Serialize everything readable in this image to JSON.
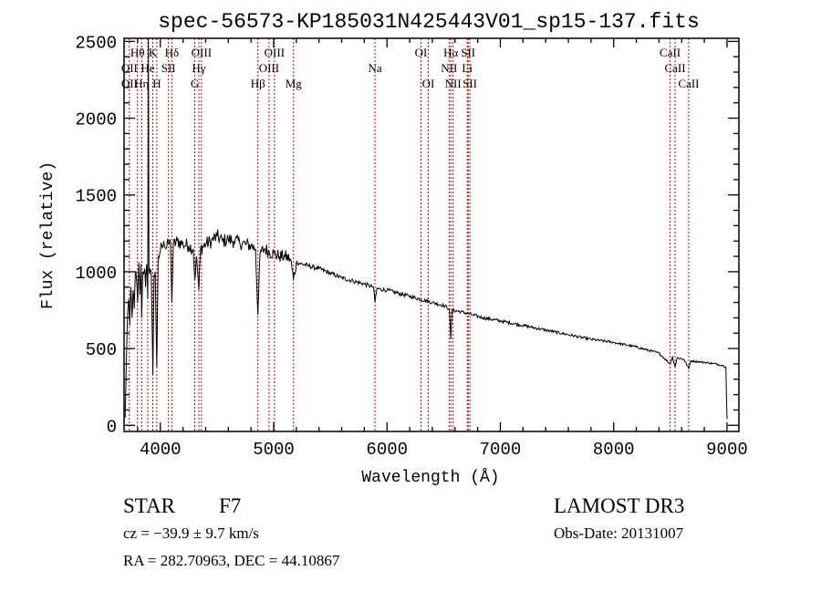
{
  "chart_data": {
    "type": "line",
    "title": "spec-56573-KP185031N425443V01_sp15-137.fits",
    "xlabel": "Wavelength (Å)",
    "ylabel": "Flux (relative)",
    "xlim": [
      3680,
      9105
    ],
    "ylim": [
      -40,
      2520
    ],
    "xticks": [
      4000,
      5000,
      6000,
      7000,
      8000,
      9000
    ],
    "yticks": [
      0,
      500,
      1000,
      1500,
      2000,
      2500
    ],
    "grid": false,
    "series": [
      {
        "name": "spectrum",
        "color": "#000000",
        "points": [
          [
            3690,
            50
          ],
          [
            3700,
            420
          ],
          [
            3710,
            700
          ],
          [
            3720,
            820
          ],
          [
            3730,
            650
          ],
          [
            3740,
            900
          ],
          [
            3750,
            700
          ],
          [
            3760,
            880
          ],
          [
            3770,
            760
          ],
          [
            3780,
            1000
          ],
          [
            3790,
            950
          ],
          [
            3800,
            800
          ],
          [
            3810,
            1060
          ],
          [
            3820,
            850
          ],
          [
            3830,
            1050
          ],
          [
            3835,
            700
          ],
          [
            3845,
            1000
          ],
          [
            3860,
            1020
          ],
          [
            3870,
            900
          ],
          [
            3880,
            1050
          ],
          [
            3889,
            820
          ],
          [
            3895,
            2520
          ],
          [
            3900,
            1010
          ],
          [
            3910,
            1020
          ],
          [
            3920,
            1000
          ],
          [
            3934,
            330
          ],
          [
            3945,
            980
          ],
          [
            3955,
            1000
          ],
          [
            3969,
            380
          ],
          [
            3980,
            1050
          ],
          [
            3995,
            1120
          ],
          [
            4010,
            1180
          ],
          [
            4030,
            1200
          ],
          [
            4050,
            1150
          ],
          [
            4070,
            1180
          ],
          [
            4090,
            1190
          ],
          [
            4102,
            800
          ],
          [
            4115,
            1170
          ],
          [
            4150,
            1200
          ],
          [
            4200,
            1180
          ],
          [
            4250,
            1170
          ],
          [
            4290,
            1150
          ],
          [
            4304,
            950
          ],
          [
            4320,
            1100
          ],
          [
            4340,
            880
          ],
          [
            4355,
            1150
          ],
          [
            4400,
            1180
          ],
          [
            4450,
            1200
          ],
          [
            4500,
            1230
          ],
          [
            4550,
            1200
          ],
          [
            4600,
            1210
          ],
          [
            4650,
            1200
          ],
          [
            4700,
            1190
          ],
          [
            4750,
            1180
          ],
          [
            4800,
            1170
          ],
          [
            4840,
            1150
          ],
          [
            4861,
            720
          ],
          [
            4880,
            1120
          ],
          [
            4920,
            1150
          ],
          [
            4960,
            1130
          ],
          [
            5000,
            1120
          ],
          [
            5050,
            1100
          ],
          [
            5100,
            1100
          ],
          [
            5150,
            1080
          ],
          [
            5175,
            950
          ],
          [
            5200,
            1060
          ],
          [
            5300,
            1040
          ],
          [
            5400,
            1020
          ],
          [
            5500,
            990
          ],
          [
            5600,
            960
          ],
          [
            5700,
            940
          ],
          [
            5800,
            920
          ],
          [
            5880,
            900
          ],
          [
            5894,
            800
          ],
          [
            5910,
            890
          ],
          [
            6000,
            880
          ],
          [
            6100,
            860
          ],
          [
            6200,
            840
          ],
          [
            6300,
            820
          ],
          [
            6400,
            800
          ],
          [
            6500,
            780
          ],
          [
            6550,
            760
          ],
          [
            6563,
            560
          ],
          [
            6575,
            750
          ],
          [
            6650,
            740
          ],
          [
            6750,
            720
          ],
          [
            6850,
            700
          ],
          [
            7000,
            680
          ],
          [
            7200,
            650
          ],
          [
            7400,
            620
          ],
          [
            7600,
            590
          ],
          [
            7800,
            560
          ],
          [
            8000,
            540
          ],
          [
            8200,
            510
          ],
          [
            8400,
            470
          ],
          [
            8498,
            400
          ],
          [
            8520,
            445
          ],
          [
            8542,
            380
          ],
          [
            8560,
            440
          ],
          [
            8620,
            430
          ],
          [
            8662,
            370
          ],
          [
            8680,
            420
          ],
          [
            8800,
            410
          ],
          [
            8900,
            400
          ],
          [
            8960,
            390
          ],
          [
            8990,
            380
          ],
          [
            9000,
            40
          ]
        ]
      }
    ],
    "line_labels": [
      {
        "text": "Hθ",
        "wl": 3798,
        "row": 1
      },
      {
        "text": "K",
        "wl": 3934,
        "row": 1
      },
      {
        "text": "Hδ",
        "wl": 4102,
        "row": 1
      },
      {
        "text": "OIII",
        "wl": 4363,
        "row": 1
      },
      {
        "text": "OIII",
        "wl": 5007,
        "row": 1
      },
      {
        "text": "OI",
        "wl": 6300,
        "row": 1
      },
      {
        "text": "Hα",
        "wl": 6563,
        "row": 1
      },
      {
        "text": "SII",
        "wl": 6716,
        "row": 1
      },
      {
        "text": "CaII",
        "wl": 8498,
        "row": 1
      },
      {
        "text": "OII",
        "wl": 3727,
        "row": 2
      },
      {
        "text": "He",
        "wl": 3889,
        "row": 2
      },
      {
        "text": "SII",
        "wl": 4072,
        "row": 2
      },
      {
        "text": "Hγ",
        "wl": 4340,
        "row": 2
      },
      {
        "text": "OIII",
        "wl": 4959,
        "row": 2
      },
      {
        "text": "Na",
        "wl": 5894,
        "row": 2
      },
      {
        "text": "NII",
        "wl": 6548,
        "row": 2
      },
      {
        "text": "Li",
        "wl": 6708,
        "row": 2
      },
      {
        "text": "CaII",
        "wl": 8542,
        "row": 2
      },
      {
        "text": "OII",
        "wl": 3727,
        "row": 3
      },
      {
        "text": "Hη",
        "wl": 3835,
        "row": 3
      },
      {
        "text": "H",
        "wl": 3969,
        "row": 3
      },
      {
        "text": "G",
        "wl": 4304,
        "row": 3
      },
      {
        "text": "Hβ",
        "wl": 4861,
        "row": 3
      },
      {
        "text": "Mg",
        "wl": 5175,
        "row": 3
      },
      {
        "text": "OI",
        "wl": 6364,
        "row": 3
      },
      {
        "text": "NII",
        "wl": 6583,
        "row": 3
      },
      {
        "text": "SII",
        "wl": 6731,
        "row": 3
      },
      {
        "text": "CaII",
        "wl": 8662,
        "row": 3
      }
    ],
    "line_marker_color": "#cc0000"
  },
  "info": {
    "object_class": "STAR",
    "subclass": "F7",
    "survey": "LAMOST DR3",
    "cz": "cz = −39.9 ± 9.7 km/s",
    "obs_date": "Obs-Date: 20131007",
    "coords": "RA = 282.70963, DEC =  44.10867"
  }
}
